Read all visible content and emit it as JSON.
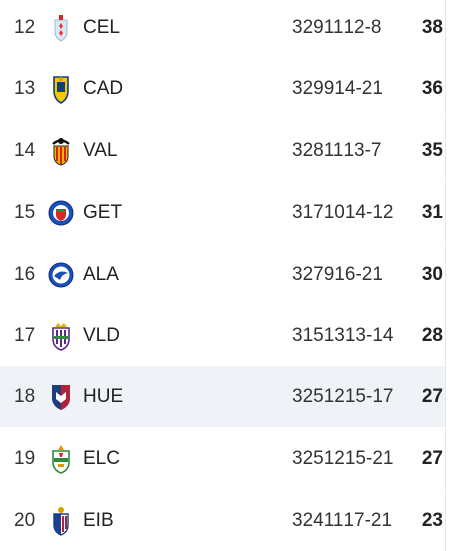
{
  "standings": [
    {
      "pos": "12",
      "team": "CEL",
      "p": "32",
      "w": "9",
      "d": "11",
      "l": "12",
      "gd": "-8",
      "pts": "38",
      "crest_icon": "celta-crest-icon",
      "highlight": false
    },
    {
      "pos": "13",
      "team": "CAD",
      "p": "32",
      "w": "9",
      "d": "9",
      "l": "14",
      "gd": "-21",
      "pts": "36",
      "crest_icon": "cadiz-crest-icon",
      "highlight": false
    },
    {
      "pos": "14",
      "team": "VAL",
      "p": "32",
      "w": "8",
      "d": "11",
      "l": "13",
      "gd": "-7",
      "pts": "35",
      "crest_icon": "valencia-crest-icon",
      "highlight": false
    },
    {
      "pos": "15",
      "team": "GET",
      "p": "31",
      "w": "7",
      "d": "10",
      "l": "14",
      "gd": "-12",
      "pts": "31",
      "crest_icon": "getafe-crest-icon",
      "highlight": false
    },
    {
      "pos": "16",
      "team": "ALA",
      "p": "32",
      "w": "7",
      "d": "9",
      "l": "16",
      "gd": "-21",
      "pts": "30",
      "crest_icon": "alaves-crest-icon",
      "highlight": false
    },
    {
      "pos": "17",
      "team": "VLD",
      "p": "31",
      "w": "5",
      "d": "13",
      "l": "13",
      "gd": "-14",
      "pts": "28",
      "crest_icon": "valladolid-crest-icon",
      "highlight": false
    },
    {
      "pos": "18",
      "team": "HUE",
      "p": "32",
      "w": "5",
      "d": "12",
      "l": "15",
      "gd": "-17",
      "pts": "27",
      "crest_icon": "huesca-crest-icon",
      "highlight": true
    },
    {
      "pos": "19",
      "team": "ELC",
      "p": "32",
      "w": "5",
      "d": "12",
      "l": "15",
      "gd": "-21",
      "pts": "27",
      "crest_icon": "elche-crest-icon",
      "highlight": false
    },
    {
      "pos": "20",
      "team": "EIB",
      "p": "32",
      "w": "4",
      "d": "11",
      "l": "17",
      "gd": "-21",
      "pts": "23",
      "crest_icon": "eibar-crest-icon",
      "highlight": false
    }
  ],
  "colors": {
    "highlight_row": "#eff3f8",
    "text": "#222222"
  }
}
